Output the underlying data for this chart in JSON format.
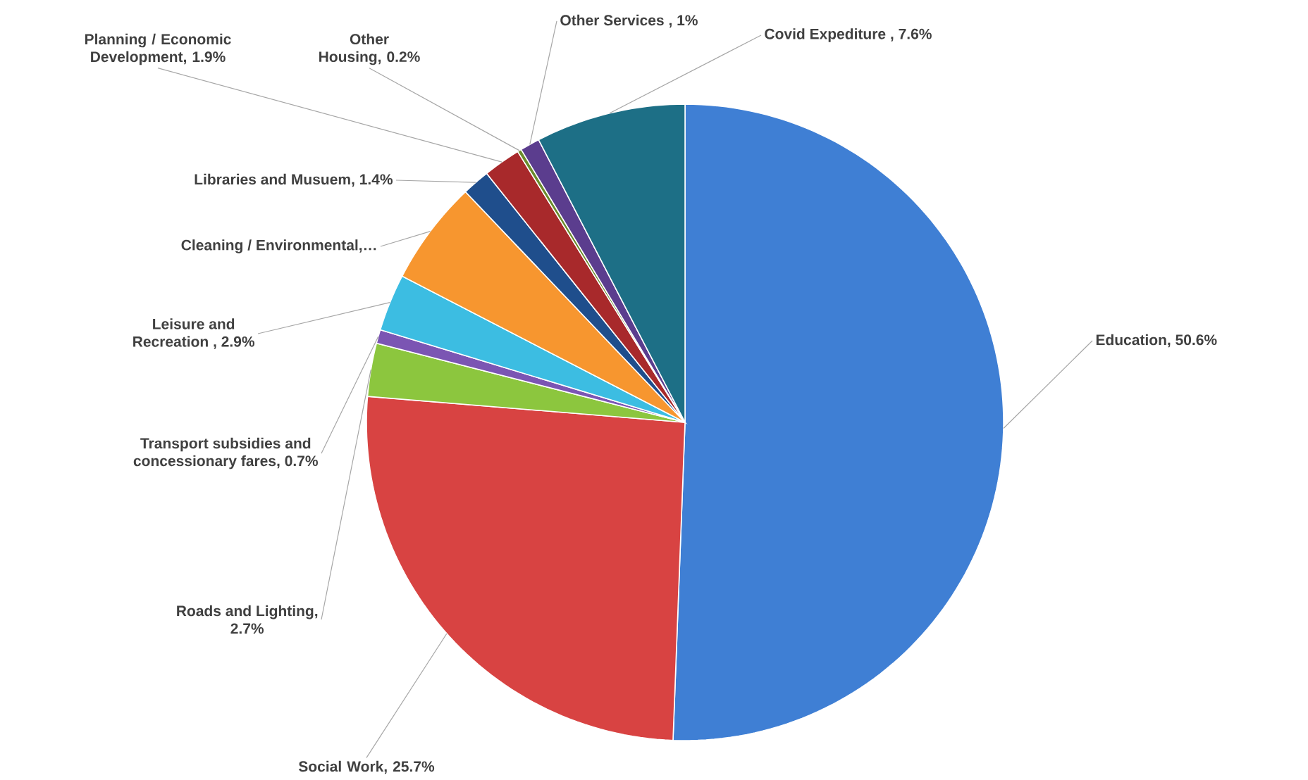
{
  "chart_data": {
    "type": "pie",
    "categories": [
      "Education",
      "Social Work",
      "Roads and Lighting",
      "Transport subsidies and concessionary fares",
      "Leisure and Recreation ",
      "Cleaning / Environmental",
      "Libraries and Musuem",
      "Planning / Economic Development",
      "Other Housing",
      "Other Services ",
      "Covid Expediture "
    ],
    "values": [
      50.6,
      25.7,
      2.7,
      0.7,
      2.9,
      5.3,
      1.4,
      1.9,
      0.2,
      1,
      7.6
    ],
    "value_labels": [
      ", 50.6%",
      ", 25.7%",
      ", 2.7%",
      ", 0.7%",
      ", 2.9%",
      ",…",
      ", 1.4%",
      ", 1.9%",
      ", 0.2%",
      ", 1%",
      ", 7.6%"
    ],
    "colors": [
      "#3f7fd4",
      "#d84342",
      "#8cc63e",
      "#7b55b3",
      "#3cbde2",
      "#f7962f",
      "#1f4e8c",
      "#a8292b",
      "#6b8b2c",
      "#5b3d8e",
      "#1d6f86"
    ]
  }
}
